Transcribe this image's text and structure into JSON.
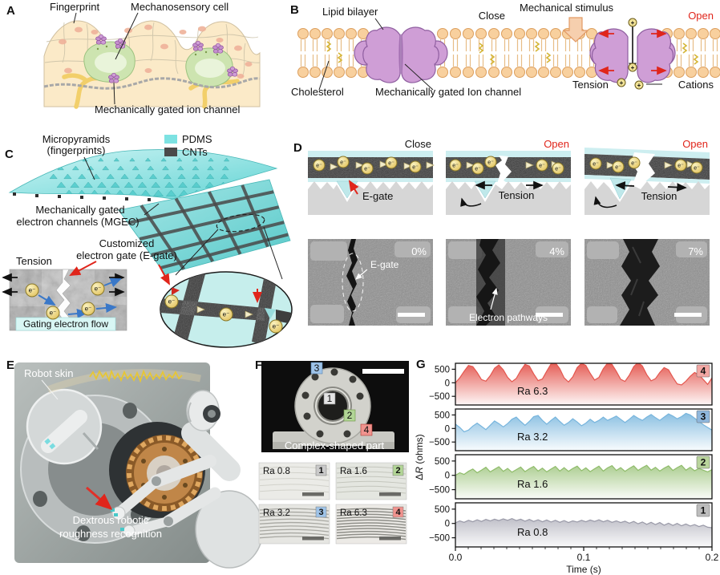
{
  "panel_a": {
    "letter": "A",
    "fingerprint": "Fingerprint",
    "mechanosensory_cell": "Mechanosensory cell",
    "ion_channel": "Mechanically gated ion channel"
  },
  "panel_b": {
    "letter": "B",
    "lipid_bilayer": "Lipid bilayer",
    "close": "Close",
    "cholesterol": "Cholesterol",
    "ion_channel": "Mechanically gated Ion channel",
    "mechanical_stimulus": "Mechanical stimulus",
    "open": "Open",
    "tension": "Tension",
    "cations": "Cations",
    "plus": "+"
  },
  "panel_c": {
    "letter": "C",
    "micropyramids_1": "Micropyramids",
    "micropyramids_2": "(fingerprints)",
    "legend_pdms": "PDMS",
    "legend_cnts": "CNTs",
    "mgec_1": "Mechanically gated",
    "mgec_2": "electron channels (MGEC)",
    "egate_1": "Customized",
    "egate_2": "electron gate (E-gate)",
    "tension": "Tension",
    "gating": "Gating electron flow",
    "electron": "e⁻"
  },
  "panel_d": {
    "letter": "D",
    "close": "Close",
    "open": "Open",
    "egate": "E-gate",
    "tension": "Tension",
    "electron": "e⁻",
    "sem": [
      {
        "strain": "0%",
        "label": "E-gate"
      },
      {
        "strain": "4%",
        "label": "Electron pathways"
      },
      {
        "strain": "7%",
        "label": ""
      }
    ]
  },
  "panel_e": {
    "letter": "E",
    "robot_skin": "Robot skin",
    "caption_1": "Dextrous robotic",
    "caption_2": "roughness recognition"
  },
  "panel_f": {
    "letter": "F",
    "caption": "Complex-shaped part",
    "tags": [
      "1",
      "2",
      "3",
      "4"
    ],
    "tiles": [
      {
        "ra": "Ra 0.8",
        "num": "1"
      },
      {
        "ra": "Ra 1.6",
        "num": "2"
      },
      {
        "ra": "Ra 3.2",
        "num": "3"
      },
      {
        "ra": "Ra 6.3",
        "num": "4"
      }
    ]
  },
  "panel_g": {
    "letter": "G",
    "ylabel_delta": "Δ",
    "ylabel_r": "R",
    "ylabel_units": " (ohms)",
    "xlabel": "Time (s)",
    "xticks": [
      "0.0",
      "0.1",
      "0.2"
    ],
    "yticks": [
      "500",
      "0",
      "−500"
    ]
  },
  "chart_data": {
    "type": "area",
    "x_range_s": [
      0,
      0.2
    ],
    "xlabel": "Time (s)",
    "ylabel": "ΔR (ohms)",
    "yticks": [
      500,
      0,
      -500
    ],
    "xticks": [
      0.0,
      0.1,
      0.2
    ],
    "ylim_est": [
      -820,
      720
    ],
    "legend_position": "badges top-right of each stacked subplot, order top to bottom 4,3,2,1",
    "series": [
      {
        "name": "Ra 6.3",
        "badge": "4",
        "color": "#e4574f",
        "badge_bg": "#f2a7a3",
        "badge_fg": "#8f1812",
        "values": [
          0,
          180,
          420,
          640,
          600,
          380,
          120,
          60,
          260,
          540,
          660,
          480,
          200,
          40,
          160,
          450,
          680,
          620,
          330,
          80,
          140,
          430,
          700,
          740,
          520,
          180,
          30,
          220,
          560,
          720,
          640,
          350,
          100,
          200,
          520,
          730,
          680,
          420,
          130,
          50,
          280,
          600,
          750,
          620,
          300,
          70,
          150,
          380,
          560,
          480,
          200,
          -40,
          -80,
          60,
          240,
          380,
          300,
          120,
          -60,
          180
        ]
      },
      {
        "name": "Ra 3.2",
        "badge": "3",
        "color": "#77b5dd",
        "badge_bg": "#8fb7dc",
        "badge_fg": "#15356e",
        "values": [
          160,
          40,
          -120,
          -60,
          90,
          200,
          80,
          -40,
          120,
          280,
          180,
          60,
          180,
          340,
          420,
          260,
          120,
          260,
          440,
          480,
          300,
          160,
          300,
          420,
          260,
          120,
          220,
          360,
          240,
          100,
          200,
          340,
          220,
          300,
          420,
          300,
          380,
          460,
          340,
          220,
          340,
          480,
          380,
          300,
          420,
          520,
          400,
          300,
          420,
          540,
          460,
          360,
          440,
          560,
          500,
          380,
          260,
          140,
          40,
          -60
        ]
      },
      {
        "name": "Ra 1.6",
        "badge": "2",
        "color": "#8fbc6a",
        "badge_bg": "#b9d49c",
        "badge_fg": "#2f5c14",
        "values": [
          0,
          90,
          30,
          140,
          220,
          90,
          180,
          280,
          120,
          210,
          300,
          140,
          240,
          110,
          200,
          290,
          130,
          230,
          310,
          150,
          250,
          120,
          220,
          310,
          150,
          270,
          140,
          240,
          320,
          160,
          260,
          130,
          230,
          320,
          150,
          260,
          340,
          170,
          270,
          140,
          240,
          330,
          170,
          270,
          350,
          180,
          280,
          150,
          250,
          330,
          170,
          270,
          350,
          180,
          280,
          160,
          240,
          180,
          120,
          200
        ]
      },
      {
        "name": "Ra 0.8",
        "badge": "1",
        "color": "#9a9aa8",
        "badge_bg": "#bdbdbd",
        "badge_fg": "#222222",
        "values": [
          20,
          90,
          40,
          110,
          60,
          130,
          70,
          140,
          90,
          150,
          100,
          160,
          110,
          170,
          100,
          150,
          80,
          140,
          70,
          130,
          60,
          120,
          50,
          110,
          40,
          100,
          30,
          90,
          50,
          110,
          60,
          120,
          70,
          130,
          60,
          110,
          40,
          90,
          30,
          80,
          10,
          70,
          -10,
          50,
          -30,
          40,
          -40,
          30,
          -60,
          10,
          -70,
          0,
          -80,
          -20,
          -90,
          -40,
          -110,
          -60,
          -130,
          -150
        ]
      }
    ]
  }
}
